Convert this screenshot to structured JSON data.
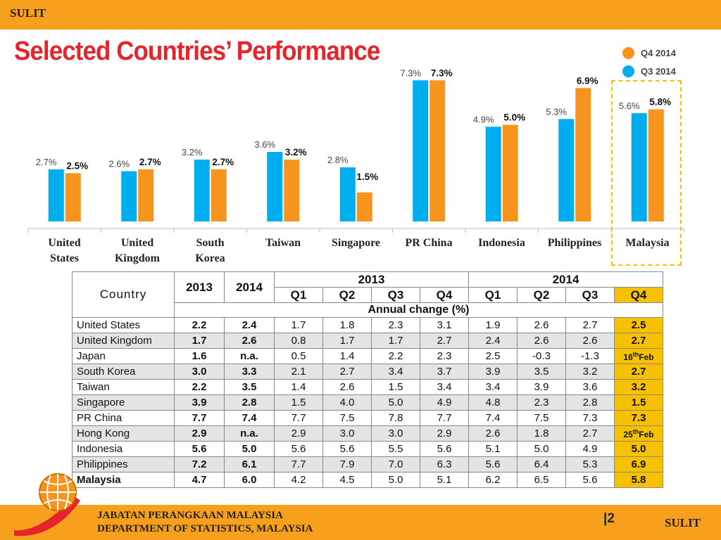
{
  "header": {
    "classification": "SULIT",
    "title": "Selected Countries’ Performance"
  },
  "legend": [
    {
      "label": "Q4 2014",
      "color": "#f7941d"
    },
    {
      "label": "Q3 2014",
      "color": "#00aeef"
    }
  ],
  "chart_data": {
    "type": "bar",
    "categories": [
      "United States",
      "United Kingdom",
      "South Korea",
      "Taiwan",
      "Singapore",
      "PR China",
      "Indonesia",
      "Philippines",
      "Malaysia"
    ],
    "category_lines": [
      [
        "United",
        "States"
      ],
      [
        "United",
        "Kingdom"
      ],
      [
        "South",
        "Korea"
      ],
      [
        "Taiwan"
      ],
      [
        "Singapore"
      ],
      [
        "PR China"
      ],
      [
        "Indonesia"
      ],
      [
        "Philippines"
      ],
      [
        "Malaysia"
      ]
    ],
    "series": [
      {
        "name": "Q3 2014",
        "values": [
          2.7,
          2.6,
          3.2,
          3.6,
          2.8,
          7.3,
          4.9,
          5.3,
          5.6
        ],
        "labels": [
          "2.7%",
          "2.6%",
          "3.2%",
          "3.6%",
          "2.8%",
          "7.3%",
          "4.9%",
          "5.3%",
          "5.6%"
        ]
      },
      {
        "name": "Q4 2014",
        "values": [
          2.5,
          2.7,
          2.7,
          3.2,
          1.5,
          7.3,
          5.0,
          6.9,
          5.8
        ],
        "labels": [
          "2.5%",
          "2.7%",
          "2.7%",
          "3.2%",
          "1.5%",
          "7.3%",
          "5.0%",
          "6.9%",
          "5.8%"
        ]
      }
    ],
    "colors": {
      "q3": "#00aeef",
      "q4": "#f7941d"
    },
    "highlighted_category": "Malaysia",
    "ylim": [
      0,
      8
    ]
  },
  "table": {
    "country_header": "Country",
    "year_2013": "2013",
    "year_2014": "2014",
    "quarters": [
      "Q1",
      "Q2",
      "Q3",
      "Q4"
    ],
    "annual_change_label": "Annual change  (%)",
    "rows": [
      {
        "country": "United States",
        "y2013": "2.2",
        "y2014": "2.4",
        "q": [
          "1.7",
          "1.8",
          "2.3",
          "3.1",
          "1.9",
          "2.6",
          "2.7"
        ],
        "q4_2014": "2.5"
      },
      {
        "country": "United Kingdom",
        "y2013": "1.7",
        "y2014": "2.6",
        "q": [
          "0.8",
          "1.7",
          "1.7",
          "2.7",
          "2.4",
          "2.6",
          "2.6"
        ],
        "q4_2014": "2.7"
      },
      {
        "country": "Japan",
        "y2013": "1.6",
        "y2014": "n.a.",
        "q": [
          "0.5",
          "1.4",
          "2.2",
          "2.3",
          "2.5",
          "-0.3",
          "-1.3"
        ],
        "q4_2014": "16",
        "q4_2014_sup": "th",
        "q4_2014_tail": "Feb"
      },
      {
        "country": "South Korea",
        "y2013": "3.0",
        "y2014": "3.3",
        "q": [
          "2.1",
          "2.7",
          "3.4",
          "3.7",
          "3.9",
          "3.5",
          "3.2"
        ],
        "q4_2014": "2.7"
      },
      {
        "country": "Taiwan",
        "y2013": "2.2",
        "y2014": "3.5",
        "q": [
          "1.4",
          "2.6",
          "1.5",
          "3.4",
          "3.4",
          "3.9",
          "3.6"
        ],
        "q4_2014": "3.2"
      },
      {
        "country": "Singapore",
        "y2013": "3.9",
        "y2014": "2.8",
        "q": [
          "1.5",
          "4.0",
          "5.0",
          "4.9",
          "4.8",
          "2.3",
          "2.8"
        ],
        "q4_2014": "1.5"
      },
      {
        "country": "PR China",
        "y2013": "7.7",
        "y2014": "7.4",
        "q": [
          "7.7",
          "7.5",
          "7.8",
          "7.7",
          "7.4",
          "7.5",
          "7.3"
        ],
        "q4_2014": "7.3"
      },
      {
        "country": "Hong Kong",
        "y2013": "2.9",
        "y2014": "n.a.",
        "q": [
          "2.9",
          "3.0",
          "3.0",
          "2.9",
          "2.6",
          "1.8",
          "2.7"
        ],
        "q4_2014": "25",
        "q4_2014_sup": "th",
        "q4_2014_tail": "Feb"
      },
      {
        "country": "Indonesia",
        "y2013": "5.6",
        "y2014": "5.0",
        "q": [
          "5.6",
          "5.6",
          "5.5",
          "5.6",
          "5.1",
          "5.0",
          "4.9"
        ],
        "q4_2014": "5.0"
      },
      {
        "country": "Philippines",
        "y2013": "7.2",
        "y2014": "6.1",
        "q": [
          "7.7",
          "7.9",
          "7.0",
          "6.3",
          "5.6",
          "6.4",
          "5.3"
        ],
        "q4_2014": "6.9"
      },
      {
        "country": "Malaysia",
        "y2013": "4.7",
        "y2014": "6.0",
        "q": [
          "4.2",
          "4.5",
          "5.0",
          "5.1",
          "6.2",
          "6.5",
          "5.6"
        ],
        "q4_2014": "5.8",
        "bold_name": true
      }
    ]
  },
  "footer": {
    "dept_ms": "JABATAN PERANGKAAN MALAYSIA",
    "dept_en": "DEPARTMENT OF STATISTICS, MALAYSIA",
    "page": "|2",
    "classification": "SULIT"
  }
}
